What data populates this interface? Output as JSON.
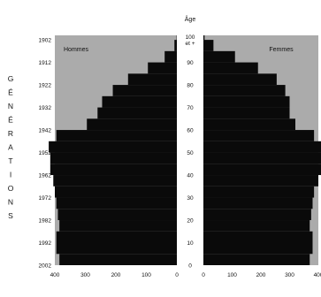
{
  "chart_data": {
    "type": "bar",
    "orientation": "horizontal-pyramid",
    "title": "Âge",
    "left_label": "Hommes",
    "right_label": "Femmes",
    "left_axis_title": "GÉNÉRATIONS",
    "generation_ticks": [
      "1902",
      "1912",
      "1922",
      "1932",
      "1942",
      "1952",
      "1962",
      "1972",
      "1982",
      "1992",
      "2002"
    ],
    "age_ticks": [
      "100 et +",
      "90",
      "80",
      "70",
      "60",
      "50",
      "40",
      "30",
      "20",
      "10",
      "0"
    ],
    "x_ticks_left": [
      "400",
      "300",
      "200",
      "100",
      "0"
    ],
    "x_ticks_right": [
      "0",
      "100",
      "200",
      "300",
      "400"
    ],
    "xlim": [
      0,
      400
    ],
    "plot_background": "#ababab",
    "bar_color": "#0a0a0a",
    "age_step": 5,
    "ages": [
      0,
      5,
      10,
      15,
      20,
      25,
      30,
      35,
      40,
      45,
      50,
      55,
      60,
      65,
      70,
      75,
      80,
      85,
      90,
      95,
      100
    ],
    "series": [
      {
        "name": "Hommes",
        "values": [
          385,
          395,
          395,
          385,
          390,
          395,
          400,
          405,
          415,
          415,
          420,
          395,
          295,
          260,
          245,
          210,
          160,
          95,
          40,
          8,
          1
        ]
      },
      {
        "name": "Femmes",
        "values": [
          370,
          380,
          380,
          370,
          375,
          380,
          385,
          400,
          410,
          410,
          410,
          385,
          320,
          300,
          300,
          285,
          255,
          190,
          110,
          35,
          4
        ]
      }
    ]
  }
}
